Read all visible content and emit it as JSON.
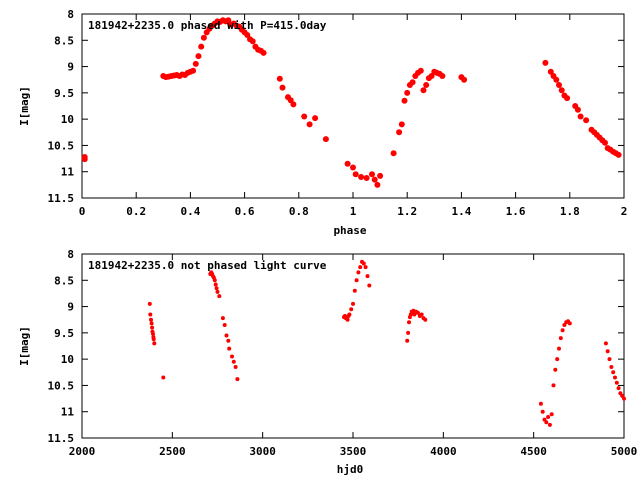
{
  "colors": {
    "points": "#ff0000",
    "axes": "#000000",
    "background": "#ffffff"
  },
  "chart_data": [
    {
      "type": "scatter",
      "title": "181942+2235.0 phased with P=415.0day",
      "xlabel": "phase",
      "ylabel": "I[mag]",
      "xlim": [
        0,
        2
      ],
      "ylim": [
        11.5,
        8
      ],
      "y_inverted": true,
      "xticks": [
        "0",
        "0.2",
        "0.4",
        "0.6",
        "0.8",
        "1",
        "1.2",
        "1.4",
        "1.6",
        "1.8",
        "2"
      ],
      "yticks": [
        "8",
        "8.5",
        "9",
        "9.5",
        "10",
        "10.5",
        "11",
        "11.5"
      ],
      "grid": false,
      "marker": "filled-circle",
      "series": [
        {
          "x": [
            0.01,
            0.01,
            0.3,
            0.31,
            0.32,
            0.33,
            0.34,
            0.35,
            0.36,
            0.37,
            0.38,
            0.39,
            0.4,
            0.41,
            0.42,
            0.43,
            0.44,
            0.45,
            0.46,
            0.47,
            0.48,
            0.49,
            0.5,
            0.51,
            0.52,
            0.53,
            0.54,
            0.55,
            0.56,
            0.57,
            0.58,
            0.59,
            0.6,
            0.61,
            0.62,
            0.63,
            0.64,
            0.65,
            0.66,
            0.67,
            0.73,
            0.74,
            0.76,
            0.77,
            0.78,
            0.82,
            0.84,
            0.86,
            0.9,
            0.98,
            1.0,
            1.01,
            1.03,
            1.05,
            1.07,
            1.08,
            1.09,
            1.1,
            1.15,
            1.17,
            1.18,
            1.19,
            1.2,
            1.21,
            1.22,
            1.23,
            1.24,
            1.25,
            1.26,
            1.27,
            1.28,
            1.29,
            1.3,
            1.31,
            1.32,
            1.33,
            1.4,
            1.41,
            1.71,
            1.73,
            1.74,
            1.75,
            1.76,
            1.77,
            1.78,
            1.79,
            1.82,
            1.83,
            1.84,
            1.86,
            1.88,
            1.89,
            1.9,
            1.91,
            1.92,
            1.93,
            1.94,
            1.95,
            1.96,
            1.97,
            1.98
          ],
          "y": [
            10.72,
            10.76,
            9.18,
            9.2,
            9.19,
            9.18,
            9.17,
            9.16,
            9.18,
            9.15,
            9.16,
            9.12,
            9.1,
            9.08,
            8.95,
            8.8,
            8.62,
            8.45,
            8.35,
            8.28,
            8.22,
            8.18,
            8.14,
            8.15,
            8.12,
            8.14,
            8.12,
            8.2,
            8.18,
            8.22,
            8.24,
            8.3,
            8.35,
            8.4,
            8.48,
            8.52,
            8.62,
            8.68,
            8.7,
            8.74,
            9.23,
            9.4,
            9.58,
            9.64,
            9.72,
            9.95,
            10.1,
            9.98,
            10.38,
            10.85,
            10.92,
            11.05,
            11.1,
            11.12,
            11.05,
            11.15,
            11.25,
            11.08,
            10.65,
            10.25,
            10.1,
            9.65,
            9.5,
            9.35,
            9.3,
            9.18,
            9.12,
            9.08,
            9.45,
            9.35,
            9.22,
            9.18,
            9.1,
            9.12,
            9.14,
            9.18,
            9.2,
            9.25,
            8.93,
            9.1,
            9.18,
            9.25,
            9.35,
            9.45,
            9.55,
            9.6,
            9.75,
            9.82,
            9.95,
            10.02,
            10.2,
            10.25,
            10.3,
            10.35,
            10.4,
            10.45,
            10.55,
            10.58,
            10.62,
            10.65,
            10.68
          ]
        }
      ]
    },
    {
      "type": "scatter",
      "title": "181942+2235.0 not phased light curve",
      "xlabel": "hjd0",
      "ylabel": "I[mag]",
      "xlim": [
        2000,
        5000
      ],
      "ylim": [
        11.5,
        8
      ],
      "y_inverted": true,
      "xticks": [
        "2000",
        "2500",
        "3000",
        "3500",
        "4000",
        "4500",
        "5000"
      ],
      "yticks": [
        "8",
        "8.5",
        "9",
        "9.5",
        "10",
        "10.5",
        "11",
        "11.5"
      ],
      "grid": false,
      "marker": "filled-circle",
      "series": [
        {
          "x": [
            2375,
            2378,
            2382,
            2385,
            2388,
            2390,
            2393,
            2395,
            2397,
            2400,
            2450,
            2710,
            2715,
            2720,
            2725,
            2730,
            2735,
            2740,
            2745,
            2750,
            2760,
            2780,
            2790,
            2800,
            2810,
            2815,
            2830,
            2840,
            2850,
            2860,
            3450,
            3455,
            3460,
            3465,
            3470,
            3475,
            3480,
            3490,
            3500,
            3510,
            3520,
            3530,
            3540,
            3550,
            3560,
            3570,
            3580,
            3590,
            3800,
            3805,
            3810,
            3815,
            3820,
            3825,
            3830,
            3835,
            3840,
            3850,
            3860,
            3870,
            3880,
            3890,
            3900,
            4540,
            4550,
            4560,
            4570,
            4580,
            4590,
            4600,
            4610,
            4620,
            4630,
            4640,
            4650,
            4660,
            4670,
            4680,
            4690,
            4700,
            4900,
            4910,
            4920,
            4930,
            4940,
            4950,
            4960,
            4970,
            4980,
            4990,
            5000
          ],
          "y": [
            8.95,
            9.15,
            9.25,
            9.32,
            9.4,
            9.48,
            9.52,
            9.58,
            9.62,
            9.7,
            10.35,
            8.38,
            8.35,
            8.38,
            8.42,
            8.45,
            8.5,
            8.58,
            8.65,
            8.72,
            8.8,
            9.22,
            9.35,
            9.55,
            9.65,
            9.8,
            9.95,
            10.05,
            10.15,
            10.38,
            9.2,
            9.18,
            9.22,
            9.2,
            9.25,
            9.18,
            9.15,
            9.05,
            8.95,
            8.7,
            8.5,
            8.35,
            8.25,
            8.15,
            8.18,
            8.25,
            8.42,
            8.6,
            9.65,
            9.5,
            9.3,
            9.2,
            9.15,
            9.1,
            9.12,
            9.08,
            9.15,
            9.1,
            9.12,
            9.18,
            9.15,
            9.22,
            9.25,
            10.85,
            11.0,
            11.15,
            11.2,
            11.1,
            11.25,
            11.05,
            10.5,
            10.2,
            10.0,
            9.8,
            9.6,
            9.45,
            9.35,
            9.3,
            9.28,
            9.32,
            9.7,
            9.85,
            10.0,
            10.15,
            10.25,
            10.35,
            10.45,
            10.55,
            10.65,
            10.7,
            10.75
          ]
        }
      ]
    }
  ]
}
